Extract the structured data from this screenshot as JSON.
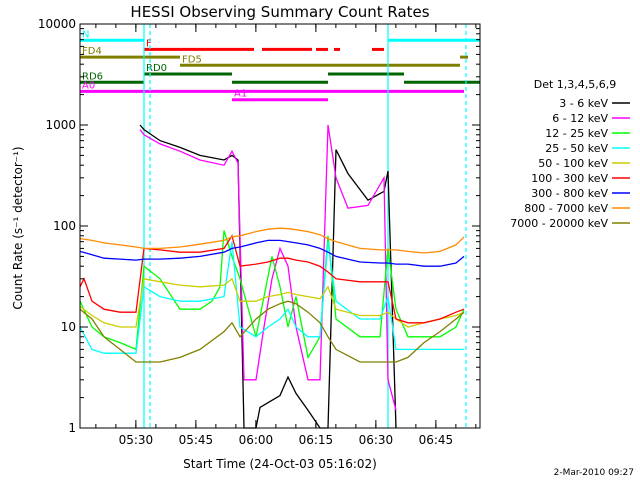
{
  "chart_data": {
    "type": "line",
    "title": "HESSI Observing Summary Count Rates",
    "xlabel": "Start Time (24-Oct-03 05:16:02)",
    "ylabel": "Count Rate (s⁻¹ detector⁻¹)",
    "y_scale": "log",
    "ylim": [
      1,
      10000
    ],
    "xlim_minutes_since_start": [
      0,
      100
    ],
    "x_ticks": [
      "05:30",
      "05:45",
      "06:00",
      "06:15",
      "06:30",
      "06:45"
    ],
    "y_ticks": [
      "1",
      "10",
      "100",
      "1000",
      "10000"
    ],
    "legend_title": "Det 1,3,4,5,6,9",
    "legend_position": "right",
    "series": [
      {
        "name": "3 - 6 keV",
        "color": "#000000",
        "x": [
          15,
          16,
          20,
          25,
          30,
          36,
          38,
          39.5,
          41,
          44,
          45,
          50,
          52,
          54,
          57,
          60,
          62,
          64,
          67,
          72,
          76,
          77,
          79
        ],
        "y": [
          1000,
          900,
          700,
          600,
          500,
          450,
          500,
          450,
          1,
          1,
          1.6,
          2.1,
          3.2,
          2.2,
          1.5,
          1,
          1,
          570,
          330,
          180,
          220,
          350,
          1
        ]
      },
      {
        "name": "6 - 12 keV",
        "color": "#ff00ff",
        "x": [
          15,
          16,
          20,
          25,
          30,
          36,
          38,
          39.5,
          41,
          44,
          46,
          48,
          50,
          52,
          54,
          57,
          60,
          62,
          64,
          67,
          72,
          76,
          77,
          79
        ],
        "y": [
          900,
          800,
          650,
          550,
          450,
          400,
          550,
          420,
          3,
          3,
          10,
          30,
          60,
          40,
          10,
          3,
          3,
          1000,
          300,
          150,
          160,
          300,
          3,
          1.5
        ]
      },
      {
        "name": "12 - 25 keV",
        "color": "#00ff00",
        "x": [
          0,
          3,
          6,
          10,
          14,
          16,
          20,
          25,
          30,
          33,
          35,
          36,
          38,
          40,
          44,
          48,
          50,
          52,
          54,
          57,
          60,
          62,
          64,
          70,
          75,
          77,
          79,
          82,
          86,
          90,
          94,
          96
        ],
        "y": [
          18,
          10,
          8,
          7,
          6,
          40,
          30,
          15,
          15,
          18,
          25,
          90,
          50,
          30,
          8,
          50,
          25,
          10,
          20,
          5,
          8,
          80,
          12,
          8,
          8,
          60,
          15,
          8,
          8,
          8,
          10,
          15
        ]
      },
      {
        "name": "25 - 50 keV",
        "color": "#00ffff",
        "x": [
          0,
          3,
          6,
          10,
          14,
          16,
          20,
          25,
          30,
          36,
          38,
          40,
          44,
          47,
          50,
          52,
          54,
          57,
          60,
          62,
          64,
          70,
          75,
          77,
          79,
          82,
          86,
          90,
          94,
          96
        ],
        "y": [
          10,
          6,
          5.5,
          5.5,
          5.5,
          25,
          20,
          18,
          18,
          20,
          70,
          10,
          8,
          10,
          12,
          15,
          10,
          8,
          8,
          70,
          18,
          12,
          12,
          20,
          6,
          6,
          6,
          6,
          6,
          6
        ]
      },
      {
        "name": "50 - 100 keV",
        "color": "#cccc00",
        "x": [
          0,
          3,
          6,
          10,
          14,
          16,
          20,
          25,
          30,
          36,
          38,
          40,
          44,
          47,
          50,
          52,
          54,
          57,
          60,
          62,
          64,
          70,
          75,
          77,
          79,
          82,
          86,
          90,
          94,
          96
        ],
        "y": [
          16,
          13,
          11,
          10,
          10,
          30,
          28,
          26,
          25,
          26,
          30,
          18,
          18,
          20,
          21,
          22,
          21,
          20,
          19,
          25,
          15,
          13,
          13,
          14,
          12,
          10,
          11,
          12,
          13,
          14
        ]
      },
      {
        "name": "100 - 300 keV",
        "color": "#ff0000",
        "x": [
          0,
          1,
          3,
          6,
          10,
          14,
          16,
          20,
          25,
          30,
          36,
          38,
          40,
          44,
          47,
          50,
          52,
          54,
          57,
          60,
          62,
          64,
          70,
          75,
          77,
          79,
          82,
          86,
          90,
          94,
          96
        ],
        "y": [
          25,
          30,
          18,
          15,
          14,
          14,
          60,
          58,
          55,
          55,
          60,
          80,
          40,
          42,
          44,
          48,
          48,
          46,
          44,
          40,
          35,
          30,
          28,
          28,
          28,
          12,
          11,
          11,
          12,
          14,
          15
        ]
      },
      {
        "name": "300 - 800 keV",
        "color": "#0000ff",
        "x": [
          0,
          3,
          6,
          10,
          14,
          16,
          20,
          25,
          30,
          36,
          38,
          40,
          44,
          47,
          50,
          52,
          54,
          57,
          60,
          62,
          64,
          70,
          75,
          77,
          79,
          82,
          86,
          90,
          94,
          96
        ],
        "y": [
          56,
          52,
          48,
          47,
          46,
          47,
          47,
          48,
          50,
          55,
          60,
          62,
          68,
          72,
          72,
          70,
          68,
          65,
          60,
          55,
          50,
          44,
          43,
          43,
          42,
          42,
          40,
          40,
          43,
          50
        ]
      },
      {
        "name": "800 - 7000 keV",
        "color": "#ff8c00",
        "x": [
          0,
          3,
          6,
          10,
          14,
          16,
          20,
          25,
          30,
          36,
          38,
          40,
          44,
          47,
          50,
          52,
          54,
          57,
          60,
          62,
          64,
          70,
          75,
          77,
          79,
          82,
          86,
          90,
          94,
          96
        ],
        "y": [
          75,
          72,
          68,
          65,
          62,
          60,
          60,
          62,
          66,
          72,
          78,
          80,
          88,
          93,
          95,
          94,
          92,
          88,
          82,
          75,
          70,
          60,
          58,
          58,
          58,
          56,
          54,
          56,
          65,
          78
        ]
      },
      {
        "name": "7000 - 20000 keV",
        "color": "#808000",
        "x": [
          0,
          3,
          6,
          10,
          14,
          16,
          20,
          25,
          30,
          36,
          38,
          40,
          44,
          47,
          50,
          52,
          54,
          57,
          60,
          62,
          64,
          70,
          75,
          77,
          79,
          82,
          86,
          90,
          94,
          96
        ],
        "y": [
          15,
          12,
          8,
          6,
          4.5,
          4.5,
          4.5,
          5,
          6,
          9,
          11,
          8,
          12,
          15,
          17,
          18,
          17,
          14,
          11,
          8,
          6,
          4.5,
          4.5,
          4.5,
          4.5,
          5,
          7,
          9,
          12,
          14
        ]
      }
    ],
    "segment_bars": [
      {
        "label": "N",
        "color": "#00ffff",
        "y": 6900,
        "segments": [
          [
            0,
            16
          ],
          [
            77,
            100
          ]
        ]
      },
      {
        "label": "F",
        "color": "#ff0000",
        "y": 5600,
        "segments": [
          [
            16,
            43.5
          ],
          [
            45.5,
            58
          ],
          [
            59,
            62
          ],
          [
            63.5,
            65
          ],
          [
            73,
            76
          ]
        ]
      },
      {
        "label": "FD4",
        "color": "#808000",
        "y": 4700,
        "segments": [
          [
            0,
            25
          ],
          [
            95,
            97
          ]
        ]
      },
      {
        "label": "FD5",
        "color": "#808000",
        "y": 3900,
        "segments": [
          [
            25,
            95
          ]
        ]
      },
      {
        "label": "RD0",
        "color": "#006400",
        "y": 3200,
        "segments": [
          [
            16,
            38
          ],
          [
            62,
            81
          ]
        ]
      },
      {
        "label": "RD6",
        "color": "#006400",
        "y": 2650,
        "segments": [
          [
            0,
            16
          ],
          [
            38,
            62
          ],
          [
            81,
            100
          ]
        ]
      },
      {
        "label": "A0",
        "color": "#ff00ff",
        "y": 2150,
        "segments": [
          [
            0,
            96
          ]
        ]
      },
      {
        "label": "A1",
        "color": "#ff00ff",
        "y": 1780,
        "segments": [
          [
            38,
            62
          ]
        ]
      }
    ],
    "vlines_solid": [
      16,
      77
    ],
    "vlines_dashed": [
      17.5,
      96.5
    ]
  },
  "footer": {
    "date": "2-Mar-2010 09:27"
  }
}
